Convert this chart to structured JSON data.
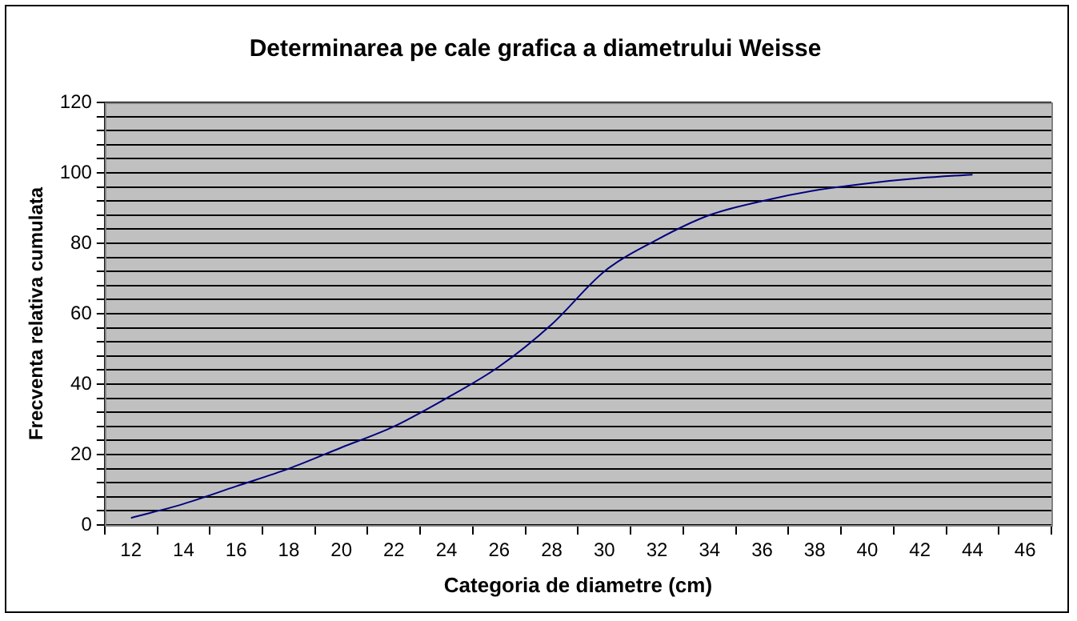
{
  "chart_data": {
    "type": "line",
    "title": "Determinarea pe cale grafica a diametrului Weisse",
    "xlabel": "Categoria de diametre (cm)",
    "ylabel": "Frecventa relativa cumulata",
    "categories": [
      "12",
      "14",
      "16",
      "18",
      "20",
      "22",
      "24",
      "26",
      "28",
      "30",
      "32",
      "34",
      "36",
      "38",
      "40",
      "42",
      "44",
      "46"
    ],
    "series": [
      {
        "color": "#000080",
        "values": [
          2,
          6,
          11,
          16,
          22,
          28,
          36,
          45,
          57,
          72,
          81,
          88,
          92,
          95,
          97,
          98.5,
          99.5,
          null
        ]
      }
    ],
    "ylim": [
      0,
      120
    ],
    "yticks": [
      0,
      {
        "value": 4,
        "label": null
      },
      {
        "value": 8,
        "label": null
      },
      {
        "value": 12,
        "label": null
      },
      {
        "value": 16,
        "label": null
      },
      20,
      {
        "value": 24,
        "label": null
      },
      {
        "value": 28,
        "label": null
      },
      {
        "value": 32,
        "label": null
      },
      {
        "value": 36,
        "label": null
      },
      40,
      {
        "value": 44,
        "label": null
      },
      {
        "value": 48,
        "label": null
      },
      {
        "value": 52,
        "label": null
      },
      {
        "value": 56,
        "label": null
      },
      60,
      {
        "value": 64,
        "label": null
      },
      {
        "value": 68,
        "label": null
      },
      {
        "value": 72,
        "label": null
      },
      {
        "value": 76,
        "label": null
      },
      80,
      {
        "value": 84,
        "label": null
      },
      {
        "value": 88,
        "label": null
      },
      {
        "value": 92,
        "label": null
      },
      {
        "value": 96,
        "label": null
      },
      100,
      {
        "value": 104,
        "label": null
      },
      {
        "value": 108,
        "label": null
      },
      {
        "value": 112,
        "label": null
      },
      {
        "value": 116,
        "label": null
      },
      120
    ],
    "grid": "y",
    "legend": false,
    "marker": "none",
    "line_style": "solid"
  }
}
